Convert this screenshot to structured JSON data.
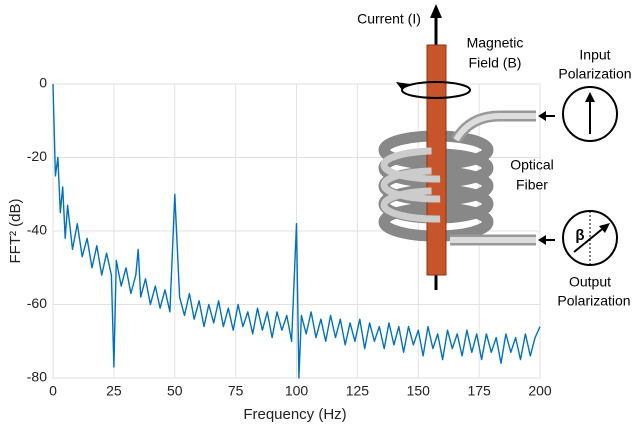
{
  "chart_data": {
    "type": "line",
    "xlabel": "Frequency (Hz)",
    "ylabel": "FFT² (dB)",
    "xlim": [
      0,
      200
    ],
    "xticks": [
      0,
      25,
      50,
      75,
      100,
      125,
      150,
      175,
      200
    ],
    "ylim": [
      -80,
      0
    ],
    "yticks": [
      0,
      -20,
      -40,
      -60,
      -80
    ],
    "grid": true,
    "x": [
      0,
      1,
      2,
      3,
      4,
      5,
      6,
      8,
      10,
      12,
      14,
      16,
      18,
      20,
      22,
      24,
      25,
      26,
      28,
      30,
      32,
      34,
      35,
      36,
      38,
      40,
      42,
      44,
      46,
      48,
      50,
      52,
      54,
      56,
      58,
      60,
      62,
      64,
      66,
      68,
      70,
      72,
      74,
      76,
      78,
      80,
      82,
      84,
      86,
      88,
      90,
      92,
      94,
      96,
      98,
      100,
      101,
      102,
      104,
      106,
      108,
      110,
      112,
      114,
      116,
      118,
      120,
      122,
      124,
      126,
      128,
      130,
      132,
      134,
      136,
      138,
      140,
      142,
      144,
      146,
      148,
      150,
      152,
      154,
      156,
      158,
      160,
      162,
      164,
      166,
      168,
      170,
      172,
      174,
      176,
      178,
      180,
      182,
      184,
      186,
      188,
      190,
      192,
      194,
      196,
      198,
      200
    ],
    "series": [
      {
        "color": "#0072bd",
        "values": [
          0,
          -25,
          -20,
          -35,
          -28,
          -42,
          -33,
          -45,
          -38,
          -47,
          -42,
          -50,
          -44,
          -52,
          -46,
          -52,
          -77,
          -48,
          -55,
          -50,
          -57,
          -52,
          -45,
          -58,
          -53,
          -60,
          -55,
          -61,
          -56,
          -62,
          -30,
          -58,
          -63,
          -57,
          -64,
          -59,
          -66,
          -60,
          -65,
          -59,
          -66,
          -61,
          -67,
          -60,
          -66,
          -62,
          -68,
          -61,
          -67,
          -62,
          -69,
          -62,
          -67,
          -63,
          -70,
          -38,
          -80,
          -63,
          -68,
          -62,
          -69,
          -64,
          -70,
          -63,
          -69,
          -64,
          -71,
          -65,
          -70,
          -64,
          -72,
          -65,
          -70,
          -66,
          -72,
          -65,
          -71,
          -66,
          -73,
          -66,
          -71,
          -67,
          -74,
          -66,
          -72,
          -68,
          -75,
          -67,
          -72,
          -68,
          -74,
          -67,
          -73,
          -68,
          -75,
          -68,
          -73,
          -69,
          -76,
          -68,
          -73,
          -69,
          -75,
          -68,
          -74,
          -69,
          -66
        ]
      }
    ]
  },
  "diagram": {
    "current": "Current (I)",
    "magnetic_field": [
      "Magnetic",
      "Field (B)"
    ],
    "input_polarization": [
      "Input",
      "Polarization"
    ],
    "optical_fiber": [
      "Optical",
      "Fiber"
    ],
    "beta": "β",
    "output_polarization": [
      "Output",
      "Polarization"
    ]
  }
}
